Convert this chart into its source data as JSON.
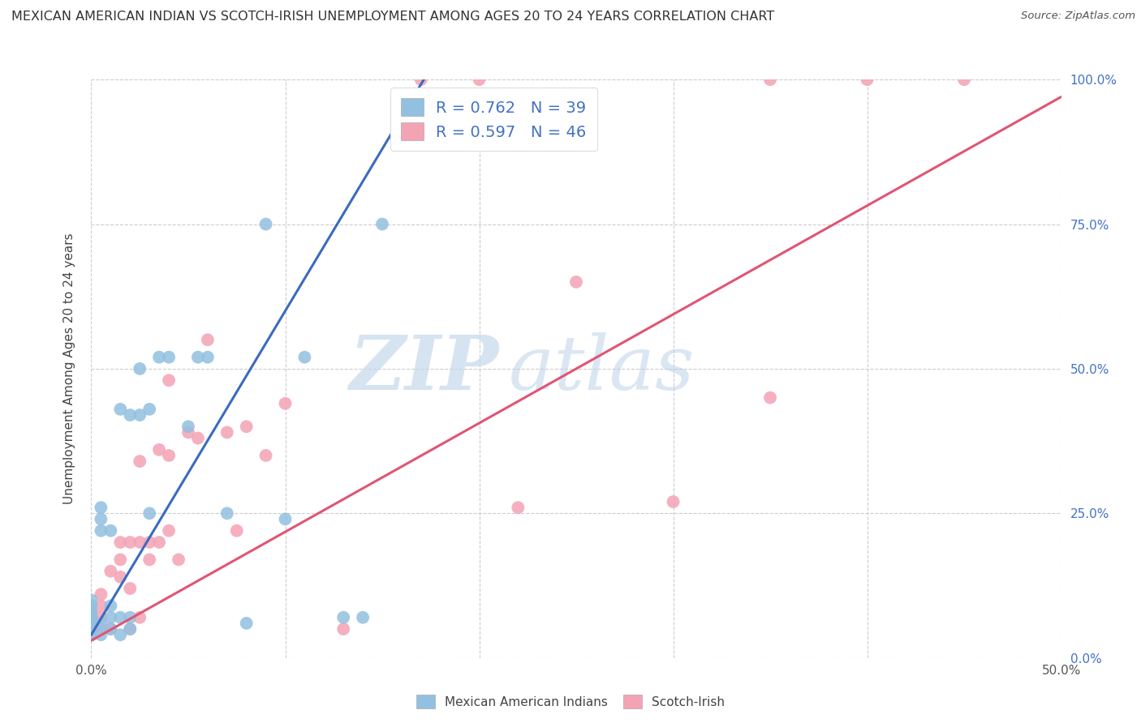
{
  "title": "MEXICAN AMERICAN INDIAN VS SCOTCH-IRISH UNEMPLOYMENT AMONG AGES 20 TO 24 YEARS CORRELATION CHART",
  "source": "Source: ZipAtlas.com",
  "ylabel": "Unemployment Among Ages 20 to 24 years",
  "ylabel_right_ticks": [
    "0.0%",
    "25.0%",
    "50.0%",
    "75.0%",
    "100.0%"
  ],
  "ylabel_right_values": [
    0.0,
    0.25,
    0.5,
    0.75,
    1.0
  ],
  "xlim": [
    0.0,
    0.5
  ],
  "ylim": [
    0.0,
    1.0
  ],
  "blue_R": 0.762,
  "blue_N": 39,
  "pink_R": 0.597,
  "pink_N": 46,
  "legend_label_blue": "Mexican American Indians",
  "legend_label_pink": "Scotch-Irish",
  "blue_color": "#92c0e0",
  "pink_color": "#f4a3b5",
  "blue_line_color": "#3a6bbf",
  "pink_line_color": "#e05575",
  "watermark_zip": "ZIP",
  "watermark_atlas": "atlas",
  "title_color": "#333333",
  "blue_line_x": [
    0.0,
    0.175
  ],
  "blue_line_y": [
    0.04,
    1.02
  ],
  "pink_line_x": [
    0.0,
    0.5
  ],
  "pink_line_y": [
    0.03,
    0.97
  ],
  "blue_scatter_x": [
    0.0,
    0.0,
    0.0,
    0.0,
    0.0,
    0.0,
    0.0,
    0.005,
    0.005,
    0.005,
    0.005,
    0.005,
    0.01,
    0.01,
    0.01,
    0.01,
    0.015,
    0.015,
    0.015,
    0.02,
    0.02,
    0.02,
    0.025,
    0.025,
    0.03,
    0.03,
    0.035,
    0.04,
    0.05,
    0.055,
    0.06,
    0.07,
    0.08,
    0.09,
    0.1,
    0.11,
    0.13,
    0.14,
    0.15
  ],
  "blue_scatter_y": [
    0.04,
    0.05,
    0.06,
    0.07,
    0.08,
    0.09,
    0.1,
    0.04,
    0.06,
    0.22,
    0.24,
    0.26,
    0.05,
    0.07,
    0.09,
    0.22,
    0.04,
    0.07,
    0.43,
    0.05,
    0.07,
    0.42,
    0.42,
    0.5,
    0.25,
    0.43,
    0.52,
    0.52,
    0.4,
    0.52,
    0.52,
    0.25,
    0.06,
    0.75,
    0.24,
    0.52,
    0.07,
    0.07,
    0.75
  ],
  "pink_scatter_x": [
    0.0,
    0.0,
    0.0,
    0.0,
    0.0,
    0.005,
    0.005,
    0.005,
    0.005,
    0.01,
    0.01,
    0.015,
    0.015,
    0.015,
    0.02,
    0.02,
    0.02,
    0.025,
    0.025,
    0.025,
    0.03,
    0.03,
    0.035,
    0.035,
    0.04,
    0.04,
    0.04,
    0.045,
    0.05,
    0.055,
    0.06,
    0.07,
    0.075,
    0.08,
    0.09,
    0.1,
    0.13,
    0.17,
    0.2,
    0.22,
    0.25,
    0.3,
    0.35,
    0.35,
    0.4,
    0.45
  ],
  "pink_scatter_y": [
    0.04,
    0.05,
    0.06,
    0.07,
    0.08,
    0.05,
    0.07,
    0.09,
    0.11,
    0.05,
    0.15,
    0.14,
    0.17,
    0.2,
    0.05,
    0.12,
    0.2,
    0.07,
    0.2,
    0.34,
    0.17,
    0.2,
    0.2,
    0.36,
    0.22,
    0.35,
    0.48,
    0.17,
    0.39,
    0.38,
    0.55,
    0.39,
    0.22,
    0.4,
    0.35,
    0.44,
    0.05,
    1.0,
    1.0,
    0.26,
    0.65,
    0.27,
    1.0,
    0.45,
    1.0,
    1.0
  ]
}
